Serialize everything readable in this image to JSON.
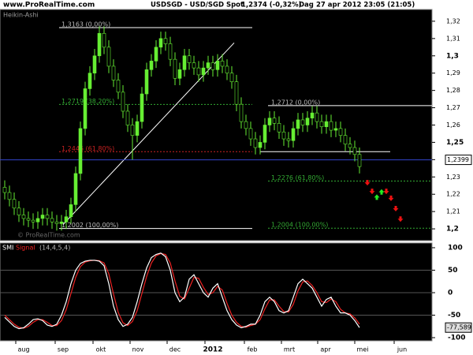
{
  "header": {
    "site": "www.ProRealTime.com",
    "instrument": "USDSGD - USD/SGD Spot",
    "last": "1,2374 (-0,32%)",
    "period": "Dag",
    "datetime": "27 apr 2012 23:05 (21:05)"
  },
  "chart_data": [
    {
      "type": "candlestick",
      "title": "Heikin-Ashi",
      "watermark": "© ProRealTime.com",
      "ylim": [
        1.1932,
        1.3268
      ],
      "yticks": [
        {
          "value": 1.2,
          "label": "1,2"
        },
        {
          "value": 1.21,
          "label": "1,21"
        },
        {
          "value": 1.22,
          "label": "1,22"
        },
        {
          "value": 1.23,
          "label": "1,23"
        },
        {
          "value": 1.24,
          "label": "1,24"
        },
        {
          "value": 1.25,
          "label": "1,25"
        },
        {
          "value": 1.26,
          "label": "1,26"
        },
        {
          "value": 1.27,
          "label": "1,27"
        },
        {
          "value": 1.28,
          "label": "1,28"
        },
        {
          "value": 1.29,
          "label": "1,29"
        },
        {
          "value": 1.3,
          "label": "1,3"
        },
        {
          "value": 1.31,
          "label": "1,31"
        },
        {
          "value": 1.32,
          "label": "1,32"
        }
      ],
      "series": [
        {
          "up_color": "#66ee33",
          "down_color": "#000000",
          "open": [
            1.224,
            1.221,
            1.217,
            1.212,
            1.208,
            1.206,
            1.205,
            1.204,
            1.206,
            1.208,
            1.206,
            1.204,
            1.203,
            1.204,
            1.207,
            1.214,
            1.232,
            1.258,
            1.281,
            1.29,
            1.3,
            1.313,
            1.305,
            1.294,
            1.286,
            1.279,
            1.268,
            1.26,
            1.254,
            1.262,
            1.278,
            1.292,
            1.297,
            1.305,
            1.31,
            1.307,
            1.298,
            1.287,
            1.292,
            1.3,
            1.296,
            1.293,
            1.289,
            1.293,
            1.296,
            1.292,
            1.297,
            1.294,
            1.29,
            1.285,
            1.272,
            1.262,
            1.258,
            1.252,
            1.247,
            1.25,
            1.26,
            1.264,
            1.261,
            1.256,
            1.252,
            1.251,
            1.258,
            1.263,
            1.26,
            1.264,
            1.267,
            1.262,
            1.259,
            1.262,
            1.257,
            1.258,
            1.254,
            1.249,
            1.247,
            1.243
          ],
          "high": [
            1.228,
            1.225,
            1.221,
            1.216,
            1.212,
            1.21,
            1.209,
            1.21,
            1.212,
            1.212,
            1.21,
            1.208,
            1.208,
            1.211,
            1.218,
            1.236,
            1.262,
            1.285,
            1.294,
            1.304,
            1.317,
            1.317,
            1.309,
            1.298,
            1.29,
            1.283,
            1.272,
            1.264,
            1.266,
            1.282,
            1.296,
            1.301,
            1.309,
            1.314,
            1.314,
            1.311,
            1.302,
            1.296,
            1.304,
            1.304,
            1.3,
            1.297,
            1.297,
            1.3,
            1.3,
            1.301,
            1.301,
            1.298,
            1.294,
            1.289,
            1.276,
            1.266,
            1.262,
            1.256,
            1.254,
            1.264,
            1.268,
            1.268,
            1.265,
            1.26,
            1.256,
            1.262,
            1.267,
            1.267,
            1.268,
            1.271,
            1.271,
            1.266,
            1.266,
            1.266,
            1.262,
            1.262,
            1.258,
            1.253,
            1.251,
            1.247
          ],
          "low": [
            1.217,
            1.213,
            1.208,
            1.204,
            1.202,
            1.201,
            1.2,
            1.2,
            1.202,
            1.202,
            1.2,
            1.199,
            1.199,
            1.2,
            1.203,
            1.21,
            1.228,
            1.254,
            1.277,
            1.286,
            1.296,
            1.301,
            1.29,
            1.282,
            1.275,
            1.264,
            1.256,
            1.24,
            1.25,
            1.258,
            1.274,
            1.288,
            1.293,
            1.301,
            1.303,
            1.294,
            1.283,
            1.283,
            1.288,
            1.292,
            1.289,
            1.285,
            1.285,
            1.289,
            1.288,
            1.288,
            1.29,
            1.286,
            1.281,
            1.268,
            1.258,
            1.254,
            1.248,
            1.243,
            1.243,
            1.246,
            1.256,
            1.257,
            1.252,
            1.248,
            1.247,
            1.247,
            1.254,
            1.256,
            1.256,
            1.26,
            1.258,
            1.255,
            1.255,
            1.253,
            1.253,
            1.25,
            1.245,
            1.243,
            1.239,
            1.232
          ],
          "close": [
            1.221,
            1.217,
            1.212,
            1.208,
            1.206,
            1.205,
            1.204,
            1.206,
            1.208,
            1.206,
            1.204,
            1.203,
            1.204,
            1.207,
            1.214,
            1.232,
            1.258,
            1.281,
            1.29,
            1.3,
            1.313,
            1.305,
            1.294,
            1.286,
            1.279,
            1.268,
            1.26,
            1.254,
            1.262,
            1.278,
            1.292,
            1.297,
            1.305,
            1.31,
            1.307,
            1.298,
            1.287,
            1.292,
            1.3,
            1.296,
            1.293,
            1.289,
            1.293,
            1.296,
            1.292,
            1.297,
            1.294,
            1.29,
            1.285,
            1.272,
            1.262,
            1.258,
            1.252,
            1.247,
            1.25,
            1.26,
            1.264,
            1.261,
            1.256,
            1.252,
            1.251,
            1.258,
            1.263,
            1.26,
            1.264,
            1.267,
            1.262,
            1.259,
            1.262,
            1.257,
            1.258,
            1.254,
            1.249,
            1.247,
            1.243,
            1.236
          ]
        }
      ],
      "levels": [
        {
          "value": 1.3163,
          "label": "1,3163 (0,00%)",
          "color": "#ffffff",
          "dash": false
        },
        {
          "value": 1.2719,
          "label": "1,2719 (38,20%)",
          "color": "#33aa33",
          "dash": true
        },
        {
          "value": 1.2446,
          "label": "1,2446 (61,80%)",
          "color": "#cc2222",
          "dash": true
        },
        {
          "value": 1.2002,
          "label": "1,2002 (100,00%)",
          "color": "#ffffff",
          "dash": false
        },
        {
          "value": 1.2712,
          "label": "1,2712 (0,00%)",
          "color": "#ffffff",
          "dash": false
        },
        {
          "value": 1.2276,
          "label": "1,2276 (61,80%)",
          "color": "#33aa33",
          "dash": true
        },
        {
          "value": 1.2004,
          "label": "1,2004 (100,00%)",
          "color": "#33aa33",
          "dash": true
        },
        {
          "value": 1.2446,
          "color": "#ffffff",
          "dash": false
        }
      ],
      "trendline": [
        1.2025,
        1.3075
      ],
      "last": {
        "value": 1.2399,
        "label": "1,2399",
        "color": "#3344cc"
      },
      "arrows": [
        {
          "value": 1.2255,
          "dir": "down"
        },
        {
          "value": 1.2205,
          "dir": "down"
        },
        {
          "value": 1.2195,
          "dir": "up"
        },
        {
          "value": 1.2225,
          "dir": "up"
        },
        {
          "value": 1.2205,
          "dir": "down"
        },
        {
          "value": 1.2165,
          "dir": "down"
        },
        {
          "value": 1.2105,
          "dir": "down"
        },
        {
          "value": 1.2045,
          "dir": "down"
        }
      ],
      "xlabels": [
        "aug",
        "sep",
        "okt",
        "nov",
        "dec",
        "2012",
        "feb",
        "mrt",
        "apr",
        "mei",
        "jun"
      ]
    },
    {
      "type": "line",
      "title": "SMI",
      "signal_title": "Signal",
      "params": "(14,4,5,4)",
      "ylim": [
        -107,
        110.5
      ],
      "yticks": [
        100,
        50,
        0,
        -50,
        -100
      ],
      "series": [
        {
          "name": "SMI",
          "color": "#ffffff",
          "values": [
            -55,
            -65,
            -75,
            -80,
            -78,
            -70,
            -60,
            -58,
            -62,
            -72,
            -75,
            -70,
            -50,
            -20,
            20,
            50,
            65,
            70,
            72,
            72,
            70,
            60,
            20,
            -30,
            -60,
            -75,
            -70,
            -55,
            -20,
            20,
            55,
            78,
            85,
            88,
            80,
            50,
            0,
            -20,
            -10,
            30,
            40,
            20,
            0,
            -10,
            10,
            20,
            -10,
            -40,
            -60,
            -72,
            -78,
            -75,
            -70,
            -70,
            -50,
            -20,
            -10,
            -20,
            -40,
            -45,
            -40,
            -10,
            20,
            30,
            20,
            10,
            -10,
            -30,
            -15,
            -10,
            -30,
            -45,
            -45,
            -50,
            -62,
            -77.589
          ]
        },
        {
          "name": "Signal",
          "color": "#ee2222",
          "values": [
            -50,
            -60,
            -70,
            -77,
            -79,
            -75,
            -66,
            -60,
            -60,
            -66,
            -73,
            -73,
            -62,
            -38,
            -2,
            34,
            58,
            68,
            71,
            72,
            71,
            66,
            42,
            -3,
            -44,
            -67,
            -73,
            -64,
            -40,
            -2,
            36,
            66,
            82,
            87,
            85,
            66,
            26,
            -8,
            -14,
            10,
            34,
            32,
            12,
            -4,
            0,
            14,
            6,
            -24,
            -50,
            -66,
            -75,
            -77,
            -73,
            -70,
            -60,
            -36,
            -16,
            -16,
            -30,
            -42,
            -43,
            -26,
            4,
            24,
            26,
            16,
            0,
            -20,
            -22,
            -14,
            -20,
            -37,
            -45,
            -47,
            -56,
            -70
          ]
        }
      ],
      "last": {
        "value": -77.589,
        "label": "-77,589"
      }
    }
  ]
}
